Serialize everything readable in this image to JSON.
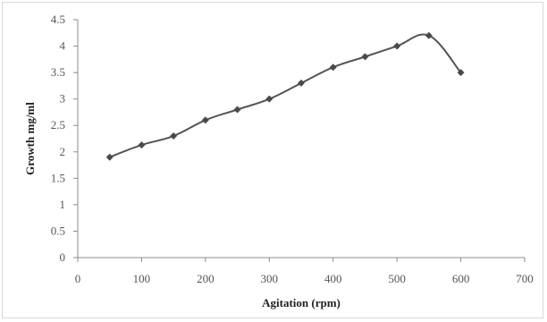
{
  "chart_data": {
    "type": "line",
    "title": "",
    "xlabel": "Agitation (rpm)",
    "ylabel": "Growth mg/ml",
    "xlim": [
      0,
      700
    ],
    "ylim": [
      0,
      4.5
    ],
    "x_ticks": [
      "0",
      "100",
      "200",
      "300",
      "400",
      "500",
      "600",
      "700"
    ],
    "y_ticks": [
      "0",
      "0.5",
      "1",
      "1.5",
      "2",
      "2.5",
      "3",
      "3.5",
      "4",
      "4.5"
    ],
    "grid": false,
    "legend": "none",
    "line_color": "#555555",
    "marker": "diamond",
    "series": [
      {
        "x": [
          50,
          100,
          150,
          200,
          250,
          300,
          350,
          400,
          450,
          500,
          550,
          600
        ],
        "y": [
          1.9,
          2.13,
          2.3,
          2.6,
          2.8,
          3.0,
          3.3,
          3.6,
          3.8,
          4.0,
          4.2,
          3.5
        ]
      }
    ]
  }
}
